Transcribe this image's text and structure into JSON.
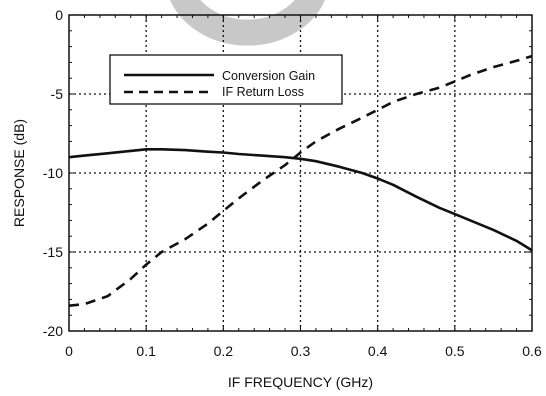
{
  "chart_data": {
    "type": "line",
    "xlabel": "IF FREQUENCY (GHz)",
    "ylabel": "RESPONSE (dB)",
    "xlim": [
      0,
      0.6
    ],
    "ylim": [
      -20,
      0
    ],
    "x_ticks": [
      0,
      0.1,
      0.2,
      0.3,
      0.4,
      0.5,
      0.6
    ],
    "y_ticks": [
      0,
      -5,
      -10,
      -15,
      -20
    ],
    "x_tick_labels": [
      "0",
      "0.1",
      "0.2",
      "0.3",
      "0.4",
      "0.5",
      "0.6"
    ],
    "y_tick_labels": [
      "0",
      "-5",
      "-10",
      "-15",
      "-20"
    ],
    "grid": true,
    "legend_position": "upper-left",
    "watermark_color": "#c8c8c8",
    "series": [
      {
        "name": "Conversion Gain",
        "line_style": "solid",
        "color": "#111111",
        "x": [
          0.0,
          0.02,
          0.05,
          0.08,
          0.1,
          0.12,
          0.15,
          0.18,
          0.2,
          0.22,
          0.25,
          0.28,
          0.3,
          0.32,
          0.35,
          0.38,
          0.4,
          0.42,
          0.45,
          0.48,
          0.5,
          0.52,
          0.55,
          0.58,
          0.6
        ],
        "y": [
          -9.0,
          -8.9,
          -8.75,
          -8.6,
          -8.5,
          -8.5,
          -8.55,
          -8.65,
          -8.7,
          -8.8,
          -8.9,
          -9.0,
          -9.1,
          -9.25,
          -9.6,
          -10.0,
          -10.35,
          -10.75,
          -11.5,
          -12.2,
          -12.6,
          -13.0,
          -13.6,
          -14.3,
          -14.9
        ]
      },
      {
        "name": "IF Return Loss",
        "line_style": "dashed",
        "color": "#111111",
        "x": [
          0.0,
          0.02,
          0.05,
          0.08,
          0.1,
          0.12,
          0.15,
          0.18,
          0.2,
          0.22,
          0.25,
          0.28,
          0.3,
          0.32,
          0.35,
          0.38,
          0.4,
          0.42,
          0.45,
          0.48,
          0.5,
          0.52,
          0.55,
          0.58,
          0.6
        ],
        "y": [
          -18.4,
          -18.3,
          -17.8,
          -16.7,
          -15.8,
          -15.0,
          -14.2,
          -13.2,
          -12.4,
          -11.6,
          -10.5,
          -9.5,
          -8.7,
          -8.0,
          -7.2,
          -6.5,
          -6.0,
          -5.5,
          -5.0,
          -4.6,
          -4.2,
          -3.8,
          -3.3,
          -2.9,
          -2.6
        ]
      }
    ]
  }
}
